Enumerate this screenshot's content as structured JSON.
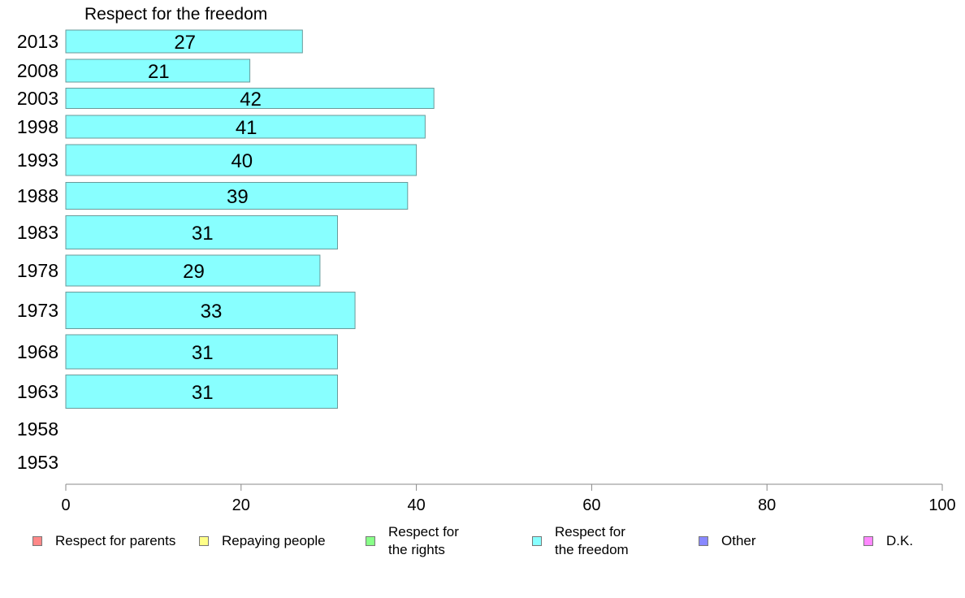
{
  "chart_data": {
    "type": "bar",
    "orientation": "horizontal",
    "title": "Respect for the freedom",
    "xlabel": "",
    "ylabel": "",
    "xlim": [
      0,
      100
    ],
    "xticks": [
      0,
      20,
      40,
      60,
      80,
      100
    ],
    "grid": false,
    "categories": [
      "2013",
      "2008",
      "2003",
      "1998",
      "1993",
      "1988",
      "1983",
      "1978",
      "1973",
      "1968",
      "1963",
      "1958",
      "1953"
    ],
    "series": [
      {
        "name": "Respect for the freedom",
        "color": "#88ffff",
        "values": [
          27,
          21,
          42,
          41,
          40,
          39,
          31,
          29,
          33,
          31,
          31,
          null,
          null
        ],
        "labels": [
          "27",
          "21",
          "42",
          "41",
          "40",
          "39",
          "31",
          "29",
          "33",
          "31",
          "31",
          "",
          ""
        ]
      }
    ],
    "legend": {
      "placement": "bottom",
      "entries": [
        {
          "label": "Respect for parents",
          "color": "#ff8888"
        },
        {
          "label": "Repaying people",
          "color": "#ffff88"
        },
        {
          "label": "Respect for\nthe rights",
          "color": "#88ff88"
        },
        {
          "label": "Respect for\nthe freedom",
          "color": "#88ffff"
        },
        {
          "label": "Other",
          "color": "#8888ff"
        },
        {
          "label": "D.K.",
          "color": "#ff88ff"
        }
      ]
    }
  }
}
